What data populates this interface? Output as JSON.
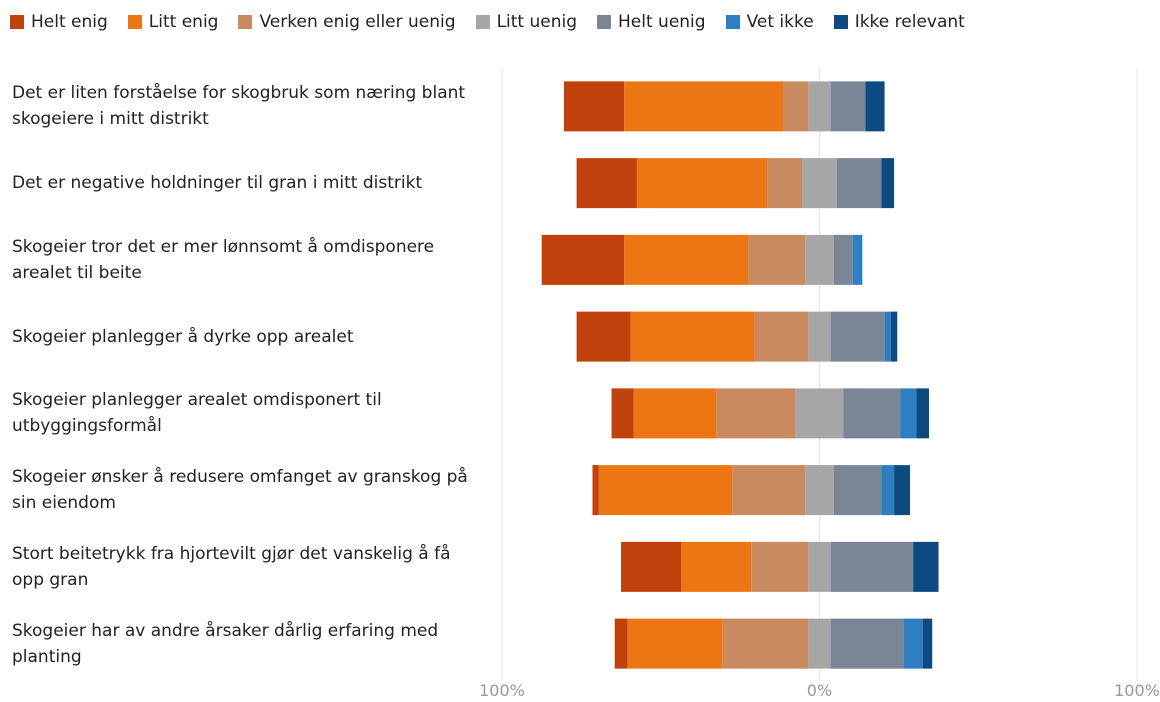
{
  "chart_data": {
    "type": "diverging-bar",
    "categories": [
      "Det er liten forståelse for skogbruk som næring blant skogeiere i mitt distrikt",
      "Det er negative holdninger til gran i mitt distrikt",
      "Skogeier tror det er mer lønnsomt å omdisponere arealet til beite",
      "Skogeier planlegger å dyrke opp arealet",
      "Skogeier planlegger arealet omdisponert til utbyggingsformål",
      "Skogeier ønsker å redusere omfanget av granskog på sin eiendom",
      "Stort beitetrykk fra hjortevilt gjør det vanskelig å få opp gran",
      "Skogeier har av andre årsaker dårlig erfaring med planting"
    ],
    "series": [
      {
        "name": "Helt enig",
        "color": "#c0410b",
        "values": [
          19,
          19,
          26,
          17,
          7,
          2,
          19,
          4
        ]
      },
      {
        "name": "Litt enig",
        "color": "#ed7614",
        "values": [
          50,
          41,
          39,
          39,
          26,
          42,
          22,
          30
        ]
      },
      {
        "name": "Verken enig eller uenig",
        "color": "#c98a5f",
        "values": [
          8,
          11,
          18,
          17,
          25,
          23,
          18,
          27
        ]
      },
      {
        "name": "Litt uenig",
        "color": "#a6a6a6",
        "values": [
          7,
          11,
          9,
          7,
          15,
          9,
          7,
          7
        ]
      },
      {
        "name": "Helt uenig",
        "color": "#7a8595",
        "values": [
          11,
          14,
          6,
          17,
          18,
          15,
          26,
          23
        ]
      },
      {
        "name": "Vet ikke",
        "color": "#2e7fc1",
        "values": [
          0,
          0,
          3,
          2,
          5,
          4,
          0,
          6
        ]
      },
      {
        "name": "Ikke relevant",
        "color": "#0d4a80",
        "values": [
          6,
          4,
          0,
          2,
          4,
          5,
          8,
          3
        ]
      }
    ],
    "center_series": 3,
    "xlim": [
      -100,
      100
    ],
    "xticks": [
      {
        "value": -100,
        "label": "100%"
      },
      {
        "value": 0,
        "label": "0%"
      },
      {
        "value": 100,
        "label": "100%"
      }
    ],
    "grid": true
  }
}
